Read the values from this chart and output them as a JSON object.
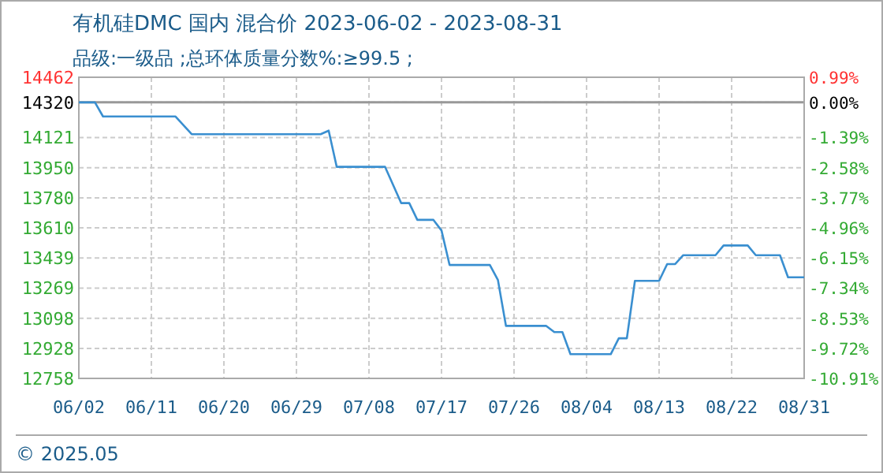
{
  "chart_data": {
    "type": "line",
    "title": "有机硅DMC 国内 混合价 2023-06-02 - 2023-08-31",
    "subtitle": "品级:一级品 ;总环体质量分数%:≥99.5 ;",
    "x": [
      "2023-06-02",
      "2023-06-04",
      "2023-06-05",
      "2023-06-14",
      "2023-06-16",
      "2023-07-02",
      "2023-07-03",
      "2023-07-04",
      "2023-07-10",
      "2023-07-12",
      "2023-07-13",
      "2023-07-14",
      "2023-07-16",
      "2023-07-17",
      "2023-07-18",
      "2023-07-23",
      "2023-07-24",
      "2023-07-25",
      "2023-07-30",
      "2023-07-31",
      "2023-08-01",
      "2023-08-02",
      "2023-08-07",
      "2023-08-08",
      "2023-08-09",
      "2023-08-10",
      "2023-08-13",
      "2023-08-14",
      "2023-08-15",
      "2023-08-16",
      "2023-08-20",
      "2023-08-21",
      "2023-08-24",
      "2023-08-25",
      "2023-08-28",
      "2023-08-29",
      "2023-08-31"
    ],
    "series": [
      {
        "color": "#3a8fd0",
        "values": [
          14320,
          14320,
          14240,
          14240,
          14140,
          14140,
          14160,
          13955,
          13955,
          13750,
          13750,
          13655,
          13655,
          13595,
          13400,
          13400,
          13315,
          13055,
          13055,
          13020,
          13020,
          12895,
          12895,
          12985,
          12985,
          13310,
          13310,
          13405,
          13405,
          13455,
          13455,
          13510,
          13510,
          13455,
          13455,
          13330,
          13330
        ]
      }
    ],
    "xlim": [
      "2023-06-02",
      "2023-08-31"
    ],
    "xticks": [
      {
        "value": "2023-06-02",
        "label": "06/02"
      },
      {
        "value": "2023-06-11",
        "label": "06/11"
      },
      {
        "value": "2023-06-20",
        "label": "06/20"
      },
      {
        "value": "2023-06-29",
        "label": "06/29"
      },
      {
        "value": "2023-07-08",
        "label": "07/08"
      },
      {
        "value": "2023-07-17",
        "label": "07/17"
      },
      {
        "value": "2023-07-26",
        "label": "07/26"
      },
      {
        "value": "2023-08-04",
        "label": "08/04"
      },
      {
        "value": "2023-08-13",
        "label": "08/13"
      },
      {
        "value": "2023-08-22",
        "label": "08/22"
      },
      {
        "value": "2023-08-31",
        "label": "08/31"
      }
    ],
    "ylim": [
      12758,
      14462
    ],
    "yticks": [
      14462,
      14320,
      14121,
      13950,
      13780,
      13610,
      13439,
      13269,
      13098,
      12928,
      12758
    ],
    "y2lim": [
      -10.91,
      0.99
    ],
    "y2ticks": [
      {
        "value": 0.99,
        "label": "0.99%"
      },
      {
        "value": 0,
        "label": "0.00%"
      },
      {
        "value": -1.39,
        "label": "-1.39%"
      },
      {
        "value": -2.58,
        "label": "-2.58%"
      },
      {
        "value": -3.77,
        "label": "-3.77%"
      },
      {
        "value": -4.96,
        "label": "-4.96%"
      },
      {
        "value": -6.15,
        "label": "-6.15%"
      },
      {
        "value": -7.34,
        "label": "-7.34%"
      },
      {
        "value": -8.53,
        "label": "-8.53%"
      },
      {
        "value": -9.72,
        "label": "-9.72%"
      },
      {
        "value": -10.91,
        "label": "-10.91%"
      }
    ],
    "ref_lines": [
      {
        "axis": "y",
        "value": 14320,
        "color": "#999999"
      }
    ],
    "grid": true,
    "annotations": [
      "© 2025.05"
    ]
  }
}
